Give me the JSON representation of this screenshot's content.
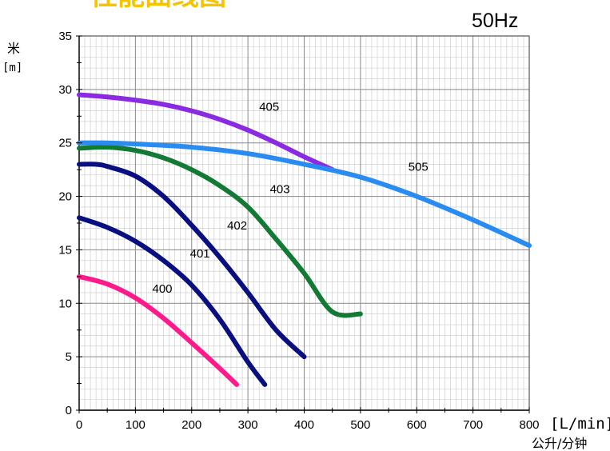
{
  "chart_data": {
    "type": "line",
    "title": "性能曲线图",
    "frequency_label": "50Hz",
    "ylabel": "米",
    "ylabel_unit": "[m]",
    "xlabel_unit": "[L/min]",
    "xlabel": "公升/分钟",
    "xlim": [
      0,
      800
    ],
    "ylim": [
      0,
      35
    ],
    "x_ticks": [
      0,
      100,
      200,
      300,
      400,
      500,
      600,
      700,
      800
    ],
    "y_ticks": [
      0,
      5,
      10,
      15,
      20,
      25,
      30,
      35
    ],
    "grid": true,
    "colors": {
      "title": "#f5c400",
      "grid_minor": "#c8c8c8",
      "grid_major": "#8c8c8c"
    },
    "series": [
      {
        "name": "400",
        "color": "#ff1a8c",
        "label_at": [
          130,
          11
        ],
        "points": [
          [
            0,
            12.5
          ],
          [
            50,
            11.8
          ],
          [
            100,
            10.5
          ],
          [
            150,
            8.6
          ],
          [
            200,
            6.3
          ],
          [
            250,
            3.9
          ],
          [
            280,
            2.4
          ]
        ]
      },
      {
        "name": "401",
        "color": "#0a0f80",
        "label_at": [
          197,
          14.3
        ],
        "points": [
          [
            0,
            18
          ],
          [
            50,
            17.1
          ],
          [
            100,
            15.8
          ],
          [
            150,
            14
          ],
          [
            200,
            11.7
          ],
          [
            250,
            8.5
          ],
          [
            300,
            4.5
          ],
          [
            330,
            2.4
          ]
        ]
      },
      {
        "name": "402",
        "color": "#0a0f80",
        "label_at": [
          263,
          16.9
        ],
        "points": [
          [
            0,
            23
          ],
          [
            30,
            23
          ],
          [
            50,
            22.8
          ],
          [
            100,
            21.9
          ],
          [
            150,
            20
          ],
          [
            200,
            17.3
          ],
          [
            250,
            14.3
          ],
          [
            300,
            11
          ],
          [
            350,
            7.5
          ],
          [
            400,
            5
          ]
        ]
      },
      {
        "name": "403",
        "color": "#137a36",
        "label_at": [
          339,
          20.3
        ],
        "points": [
          [
            0,
            24.5
          ],
          [
            50,
            24.6
          ],
          [
            100,
            24.3
          ],
          [
            150,
            23.6
          ],
          [
            200,
            22.5
          ],
          [
            250,
            21
          ],
          [
            300,
            19
          ],
          [
            350,
            16
          ],
          [
            400,
            12.8
          ],
          [
            450,
            9.2
          ],
          [
            500,
            9
          ]
        ]
      },
      {
        "name": "405",
        "color": "#8a2be2",
        "label_at": [
          320,
          28
        ],
        "points": [
          [
            0,
            29.5
          ],
          [
            50,
            29.3
          ],
          [
            100,
            29
          ],
          [
            150,
            28.6
          ],
          [
            200,
            28
          ],
          [
            250,
            27.2
          ],
          [
            300,
            26.2
          ],
          [
            350,
            25
          ],
          [
            400,
            23.7
          ],
          [
            450,
            22.5
          ]
        ]
      },
      {
        "name": "505",
        "color": "#2a8cf0",
        "label_at": [
          585,
          22.4
        ],
        "points": [
          [
            0,
            25
          ],
          [
            50,
            25
          ],
          [
            100,
            24.9
          ],
          [
            200,
            24.6
          ],
          [
            300,
            24
          ],
          [
            400,
            23
          ],
          [
            500,
            21.8
          ],
          [
            600,
            20
          ],
          [
            700,
            17.8
          ],
          [
            800,
            15.4
          ]
        ]
      }
    ]
  }
}
